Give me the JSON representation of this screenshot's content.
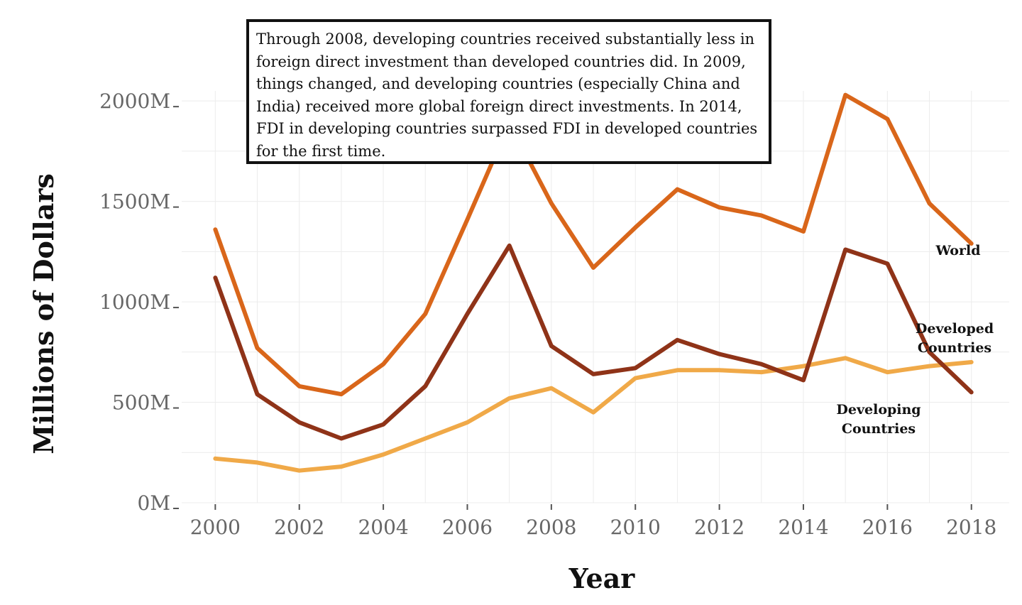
{
  "chart_data": {
    "type": "line",
    "xlabel": "Year",
    "ylabel": "Millions of Dollars",
    "x": [
      2000,
      2001,
      2002,
      2003,
      2004,
      2005,
      2006,
      2007,
      2008,
      2009,
      2010,
      2011,
      2012,
      2013,
      2014,
      2015,
      2016,
      2017,
      2018
    ],
    "xticks": [
      2000,
      2002,
      2004,
      2006,
      2008,
      2010,
      2012,
      2014,
      2016,
      2018
    ],
    "yticks": [
      0,
      500,
      1000,
      1500,
      2000
    ],
    "ytick_labels": [
      "0M",
      "500M",
      "1000M",
      "1500M",
      "2000M"
    ],
    "xlim": [
      1999.2,
      2018.9
    ],
    "ylim": [
      0,
      2050
    ],
    "grid": true,
    "annotation": "Through 2008, developing countries received substantially less in foreign direct investment than developed countries did. In 2009, things changed, and developing countries (especially China and India) received more global foreign direct investments. In 2014, FDI in developing countries surpassed FDI in developed countries for the first time.",
    "series": [
      {
        "name": "World",
        "label_lines": [
          "World"
        ],
        "color": "#d9661a",
        "values": [
          1360,
          770,
          580,
          540,
          690,
          940,
          1410,
          1890,
          1490,
          1170,
          1370,
          1560,
          1470,
          1430,
          1350,
          2030,
          1910,
          1490,
          1290
        ]
      },
      {
        "name": "Developed Countries",
        "label_lines": [
          "Developed",
          "Countries"
        ],
        "color": "#8f3318",
        "values": [
          1120,
          540,
          400,
          320,
          390,
          580,
          940,
          1280,
          780,
          640,
          670,
          810,
          740,
          690,
          610,
          1260,
          1190,
          750,
          550
        ]
      },
      {
        "name": "Developing Countries",
        "label_lines": [
          "Developing",
          "Countries"
        ],
        "color": "#f0a948",
        "values": [
          220,
          200,
          160,
          180,
          240,
          320,
          400,
          520,
          570,
          450,
          620,
          660,
          660,
          650,
          680,
          720,
          650,
          680,
          700
        ]
      }
    ]
  }
}
